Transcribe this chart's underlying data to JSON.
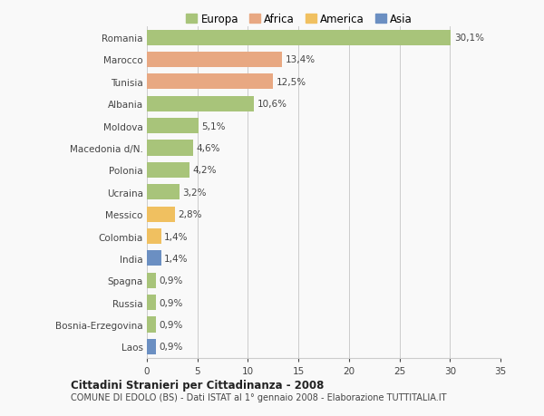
{
  "countries": [
    "Romania",
    "Marocco",
    "Tunisia",
    "Albania",
    "Moldova",
    "Macedonia d/N.",
    "Polonia",
    "Ucraina",
    "Messico",
    "Colombia",
    "India",
    "Spagna",
    "Russia",
    "Bosnia-Erzegovina",
    "Laos"
  ],
  "values": [
    30.1,
    13.4,
    12.5,
    10.6,
    5.1,
    4.6,
    4.2,
    3.2,
    2.8,
    1.4,
    1.4,
    0.9,
    0.9,
    0.9,
    0.9
  ],
  "labels": [
    "30,1%",
    "13,4%",
    "12,5%",
    "10,6%",
    "5,1%",
    "4,6%",
    "4,2%",
    "3,2%",
    "2,8%",
    "1,4%",
    "1,4%",
    "0,9%",
    "0,9%",
    "0,9%",
    "0,9%"
  ],
  "continents": [
    "Europa",
    "Africa",
    "Africa",
    "Europa",
    "Europa",
    "Europa",
    "Europa",
    "Europa",
    "America",
    "America",
    "Asia",
    "Europa",
    "Europa",
    "Europa",
    "Asia"
  ],
  "colors": {
    "Europa": "#a8c47a",
    "Africa": "#e8a882",
    "America": "#f0c060",
    "Asia": "#6b8fc2"
  },
  "xlim": [
    0,
    35
  ],
  "xticks": [
    0,
    5,
    10,
    15,
    20,
    25,
    30,
    35
  ],
  "title": "Cittadini Stranieri per Cittadinanza - 2008",
  "subtitle": "COMUNE DI EDOLO (BS) - Dati ISTAT al 1° gennaio 2008 - Elaborazione TUTTITALIA.IT",
  "background_color": "#f9f9f9",
  "bar_height": 0.7,
  "grid_color": "#cccccc",
  "text_color": "#444444",
  "label_fontsize": 7.5,
  "tick_fontsize": 7.5,
  "legend_order": [
    "Europa",
    "Africa",
    "America",
    "Asia"
  ]
}
